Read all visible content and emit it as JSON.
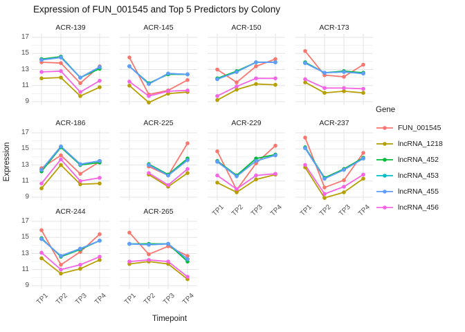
{
  "title": "Expression of FUN_001545 and Top 5 Predictors by Colony",
  "axes": {
    "x_title": "Timepoint",
    "y_title": "Expression",
    "y_ticks": [
      17,
      15,
      13,
      11,
      9
    ],
    "y_minor_ticks": [
      16,
      14,
      12,
      10
    ]
  },
  "legend": {
    "title": "Gene",
    "entries": [
      {
        "label": "FUN_001545",
        "color": "#F8766D"
      },
      {
        "label": "lncRNA_1218",
        "color": "#B79F00"
      },
      {
        "label": "lncRNA_452",
        "color": "#00BA38"
      },
      {
        "label": "lncRNA_453",
        "color": "#00BFC4"
      },
      {
        "label": "lncRNA_455",
        "color": "#619CFF"
      },
      {
        "label": "lncRNA_456",
        "color": "#F564E3"
      }
    ]
  },
  "chart_data": {
    "type": "line",
    "title": "Expression of FUN_001545 and Top 5 Predictors by Colony",
    "xlabel": "Timepoint",
    "ylabel": "Expression",
    "x_categories": [
      "TP1",
      "TP2",
      "TP3",
      "TP4"
    ],
    "ylim": [
      9,
      17
    ],
    "grid": true,
    "legend_position": "right",
    "facets": [
      {
        "name": "ACR-139",
        "series": [
          {
            "gene": "FUN_001545",
            "values": [
              13.9,
              13.8,
              11.3,
              13.4
            ]
          },
          {
            "gene": "lncRNA_1218",
            "values": [
              11.9,
              12.0,
              9.7,
              10.8
            ]
          },
          {
            "gene": "lncRNA_452",
            "values": [
              14.3,
              14.6,
              12.0,
              13.1
            ]
          },
          {
            "gene": "lncRNA_453",
            "values": [
              14.2,
              14.5,
              12.0,
              13.3
            ]
          },
          {
            "gene": "lncRNA_455",
            "values": [
              14.2,
              14.5,
              12.0,
              13.3
            ]
          },
          {
            "gene": "lncRNA_456",
            "values": [
              12.7,
              12.8,
              10.2,
              11.6
            ]
          }
        ]
      },
      {
        "name": "ACR-145",
        "series": [
          {
            "gene": "FUN_001545",
            "values": [
              14.5,
              9.9,
              10.4,
              11.7
            ]
          },
          {
            "gene": "lncRNA_1218",
            "values": [
              11.0,
              8.9,
              10.0,
              10.2
            ]
          },
          {
            "gene": "lncRNA_452",
            "values": [
              13.4,
              11.3,
              12.4,
              12.4
            ]
          },
          {
            "gene": "lncRNA_453",
            "values": [
              13.4,
              11.2,
              12.5,
              12.4
            ]
          },
          {
            "gene": "lncRNA_455",
            "values": [
              13.4,
              11.2,
              12.5,
              12.4
            ]
          },
          {
            "gene": "lncRNA_456",
            "values": [
              11.5,
              9.7,
              10.3,
              10.4
            ]
          }
        ]
      },
      {
        "name": "ACR-150",
        "series": [
          {
            "gene": "FUN_001545",
            "values": [
              13.0,
              11.4,
              13.4,
              14.3
            ]
          },
          {
            "gene": "lncRNA_1218",
            "values": [
              9.2,
              10.5,
              11.2,
              11.1
            ]
          },
          {
            "gene": "lncRNA_452",
            "values": [
              11.9,
              12.8,
              13.9,
              13.9
            ]
          },
          {
            "gene": "lncRNA_453",
            "values": [
              11.8,
              12.7,
              13.9,
              13.9
            ]
          },
          {
            "gene": "lncRNA_455",
            "values": [
              11.8,
              12.7,
              13.9,
              13.9
            ]
          },
          {
            "gene": "lncRNA_456",
            "values": [
              9.7,
              10.9,
              11.9,
              11.9
            ]
          }
        ]
      },
      {
        "name": "ACR-173",
        "series": [
          {
            "gene": "FUN_001545",
            "values": [
              15.3,
              12.3,
              12.1,
              13.6
            ]
          },
          {
            "gene": "lncRNA_1218",
            "values": [
              11.4,
              10.1,
              10.3,
              10.1
            ]
          },
          {
            "gene": "lncRNA_452",
            "values": [
              13.9,
              12.6,
              12.8,
              12.6
            ]
          },
          {
            "gene": "lncRNA_453",
            "values": [
              13.8,
              12.6,
              12.7,
              12.5
            ]
          },
          {
            "gene": "lncRNA_455",
            "values": [
              13.8,
              12.6,
              12.7,
              12.5
            ]
          },
          {
            "gene": "lncRNA_456",
            "values": [
              11.8,
              10.7,
              10.7,
              10.6
            ]
          }
        ]
      },
      {
        "name": "ACR-186",
        "series": [
          {
            "gene": "FUN_001545",
            "values": [
              12.6,
              14.2,
              11.9,
              13.4
            ]
          },
          {
            "gene": "lncRNA_1218",
            "values": [
              10.1,
              13.0,
              10.6,
              10.7
            ]
          },
          {
            "gene": "lncRNA_452",
            "values": [
              12.2,
              15.2,
              13.0,
              13.3
            ]
          },
          {
            "gene": "lncRNA_453",
            "values": [
              12.4,
              15.3,
              13.1,
              13.5
            ]
          },
          {
            "gene": "lncRNA_455",
            "values": [
              12.4,
              15.3,
              13.1,
              13.5
            ]
          },
          {
            "gene": "lncRNA_456",
            "values": [
              10.7,
              13.7,
              11.0,
              11.4
            ]
          }
        ]
      },
      {
        "name": "ACR-225",
        "series": [
          {
            "gene": "FUN_001545",
            "values": [
              null,
              12.8,
              11.7,
              15.7
            ]
          },
          {
            "gene": "lncRNA_1218",
            "values": [
              null,
              11.8,
              10.3,
              12.0
            ]
          },
          {
            "gene": "lncRNA_452",
            "values": [
              null,
              13.1,
              11.8,
              13.8
            ]
          },
          {
            "gene": "lncRNA_453",
            "values": [
              null,
              13.0,
              11.7,
              13.6
            ]
          },
          {
            "gene": "lncRNA_455",
            "values": [
              null,
              13.0,
              11.7,
              13.6
            ]
          },
          {
            "gene": "lncRNA_456",
            "values": [
              null,
              12.0,
              10.5,
              12.5
            ]
          }
        ]
      },
      {
        "name": "ACR-229",
        "series": [
          {
            "gene": "FUN_001545",
            "values": [
              14.7,
              9.9,
              13.2,
              15.4
            ]
          },
          {
            "gene": "lncRNA_1218",
            "values": [
              10.8,
              9.6,
              11.2,
              11.8
            ]
          },
          {
            "gene": "lncRNA_452",
            "values": [
              13.5,
              11.7,
              13.8,
              14.3
            ]
          },
          {
            "gene": "lncRNA_453",
            "values": [
              13.4,
              11.6,
              13.5,
              14.2
            ]
          },
          {
            "gene": "lncRNA_455",
            "values": [
              13.4,
              11.6,
              13.5,
              14.2
            ]
          },
          {
            "gene": "lncRNA_456",
            "values": [
              11.7,
              10.0,
              11.7,
              11.9
            ]
          }
        ]
      },
      {
        "name": "ACR-237",
        "series": [
          {
            "gene": "FUN_001545",
            "values": [
              16.4,
              10.2,
              11.1,
              14.5
            ]
          },
          {
            "gene": "lncRNA_1218",
            "values": [
              12.7,
              8.9,
              9.6,
              11.3
            ]
          },
          {
            "gene": "lncRNA_452",
            "values": [
              15.2,
              11.4,
              12.5,
              13.9
            ]
          },
          {
            "gene": "lncRNA_453",
            "values": [
              15.1,
              11.3,
              12.4,
              13.8
            ]
          },
          {
            "gene": "lncRNA_455",
            "values": [
              15.1,
              11.3,
              12.4,
              13.8
            ]
          },
          {
            "gene": "lncRNA_456",
            "values": [
              13.0,
              9.4,
              10.3,
              11.8
            ]
          }
        ]
      },
      {
        "name": "ACR-244",
        "series": [
          {
            "gene": "FUN_001545",
            "values": [
              15.9,
              11.6,
              13.2,
              15.4
            ]
          },
          {
            "gene": "lncRNA_1218",
            "values": [
              12.4,
              10.5,
              11.1,
              12.2
            ]
          },
          {
            "gene": "lncRNA_452",
            "values": [
              14.9,
              12.6,
              13.5,
              14.6
            ]
          },
          {
            "gene": "lncRNA_453",
            "values": [
              14.8,
              12.7,
              13.6,
              14.6
            ]
          },
          {
            "gene": "lncRNA_455",
            "values": [
              14.8,
              12.7,
              13.6,
              14.6
            ]
          },
          {
            "gene": "lncRNA_456",
            "values": [
              13.1,
              11.0,
              11.6,
              12.6
            ]
          }
        ]
      },
      {
        "name": "ACR-265",
        "series": [
          {
            "gene": "FUN_001545",
            "values": [
              15.6,
              12.9,
              13.9,
              12.7
            ]
          },
          {
            "gene": "lncRNA_1218",
            "values": [
              11.7,
              12.0,
              11.7,
              9.8
            ]
          },
          {
            "gene": "lncRNA_452",
            "values": [
              14.2,
              14.2,
              14.2,
              12.0
            ]
          },
          {
            "gene": "lncRNA_453",
            "values": [
              14.2,
              14.1,
              14.2,
              12.3
            ]
          },
          {
            "gene": "lncRNA_455",
            "values": [
              14.2,
              14.1,
              14.2,
              12.3
            ]
          },
          {
            "gene": "lncRNA_456",
            "values": [
              12.0,
              12.2,
              12.0,
              10.1
            ]
          }
        ]
      }
    ]
  }
}
